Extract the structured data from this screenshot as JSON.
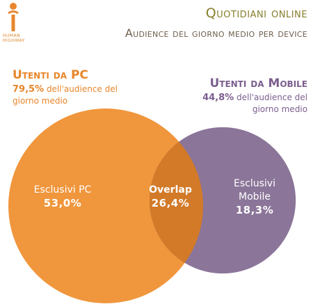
{
  "chart_data": {
    "type": "venn",
    "title": "Quotidiani online",
    "subtitle": "Audience del giorno medio per device",
    "sets": [
      {
        "name": "Utenti da PC",
        "value": 79.5,
        "value_label": "79,5%",
        "note": "dell'audience del giorno medio",
        "color": "#f0963c"
      },
      {
        "name": "Utenti da Mobile",
        "value": 44.8,
        "value_label": "44,8%",
        "note": "dell'audience del giorno medio",
        "color": "#8b7599"
      }
    ],
    "regions": [
      {
        "name": "Esclusivi PC",
        "value": 53.0,
        "value_label": "53,0%"
      },
      {
        "name": "Overlap",
        "value": 26.4,
        "value_label": "26,4%",
        "color": "#d27a28"
      },
      {
        "name": "Esclusivi Mobile",
        "value": 18.3,
        "value_label": "18,3%"
      }
    ]
  },
  "logo": {
    "line1": "HUMAN",
    "line2": "HIGHWAY"
  }
}
